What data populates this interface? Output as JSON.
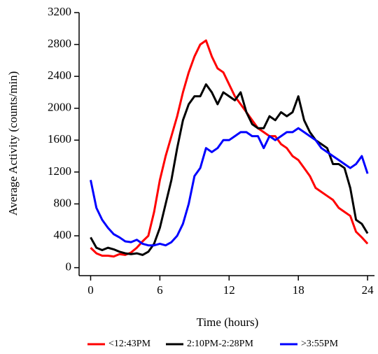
{
  "chart_data": {
    "type": "line",
    "x_label": "Time (hours)",
    "y_label": "Average Activity (counts/min)",
    "x": [
      0,
      0.5,
      1,
      1.5,
      2,
      2.5,
      3,
      3.5,
      4,
      4.5,
      5,
      5.5,
      6,
      6.5,
      7,
      7.5,
      8,
      8.5,
      9,
      9.5,
      10,
      10.5,
      11,
      11.5,
      12,
      12.5,
      13,
      13.5,
      14,
      14.5,
      15,
      15.5,
      16,
      16.5,
      17,
      17.5,
      18,
      18.5,
      19,
      19.5,
      20,
      20.5,
      21,
      21.5,
      22,
      22.5,
      23,
      23.5,
      24
    ],
    "series": [
      {
        "name": "<12:43PM",
        "color": "#ff0000",
        "values": [
          250,
          180,
          150,
          150,
          140,
          170,
          160,
          190,
          250,
          330,
          400,
          700,
          1100,
          1400,
          1650,
          1900,
          2200,
          2450,
          2650,
          2800,
          2850,
          2650,
          2500,
          2450,
          2300,
          2150,
          2050,
          1950,
          1850,
          1750,
          1700,
          1650,
          1650,
          1550,
          1500,
          1400,
          1350,
          1250,
          1150,
          1000,
          950,
          900,
          850,
          750,
          700,
          650,
          450,
          380,
          300
        ]
      },
      {
        "name": "2:10PM-2:28PM",
        "color": "#000000",
        "values": [
          380,
          250,
          220,
          250,
          230,
          200,
          180,
          170,
          180,
          160,
          200,
          300,
          500,
          800,
          1100,
          1500,
          1850,
          2050,
          2150,
          2150,
          2300,
          2200,
          2050,
          2200,
          2150,
          2100,
          2200,
          1950,
          1800,
          1750,
          1750,
          1900,
          1850,
          1950,
          1900,
          1950,
          2150,
          1850,
          1700,
          1600,
          1550,
          1500,
          1300,
          1300,
          1250,
          1000,
          600,
          550,
          430
        ]
      },
      {
        "name": ">3:55PM",
        "color": "#0000ff",
        "values": [
          1100,
          750,
          600,
          500,
          420,
          380,
          330,
          320,
          350,
          300,
          280,
          280,
          300,
          280,
          320,
          400,
          550,
          800,
          1150,
          1250,
          1500,
          1450,
          1500,
          1600,
          1600,
          1650,
          1700,
          1700,
          1650,
          1650,
          1500,
          1650,
          1600,
          1650,
          1700,
          1700,
          1750,
          1700,
          1650,
          1600,
          1500,
          1450,
          1400,
          1350,
          1300,
          1250,
          1300,
          1400,
          1180
        ]
      }
    ],
    "xlim": [
      -1,
      24.6
    ],
    "xticks": [
      0,
      6,
      12,
      18,
      24
    ],
    "ylim": [
      -100,
      3200
    ],
    "yticks": [
      0,
      400,
      800,
      1200,
      1600,
      2000,
      2400,
      2800,
      3200
    ],
    "legend": "bottom"
  }
}
